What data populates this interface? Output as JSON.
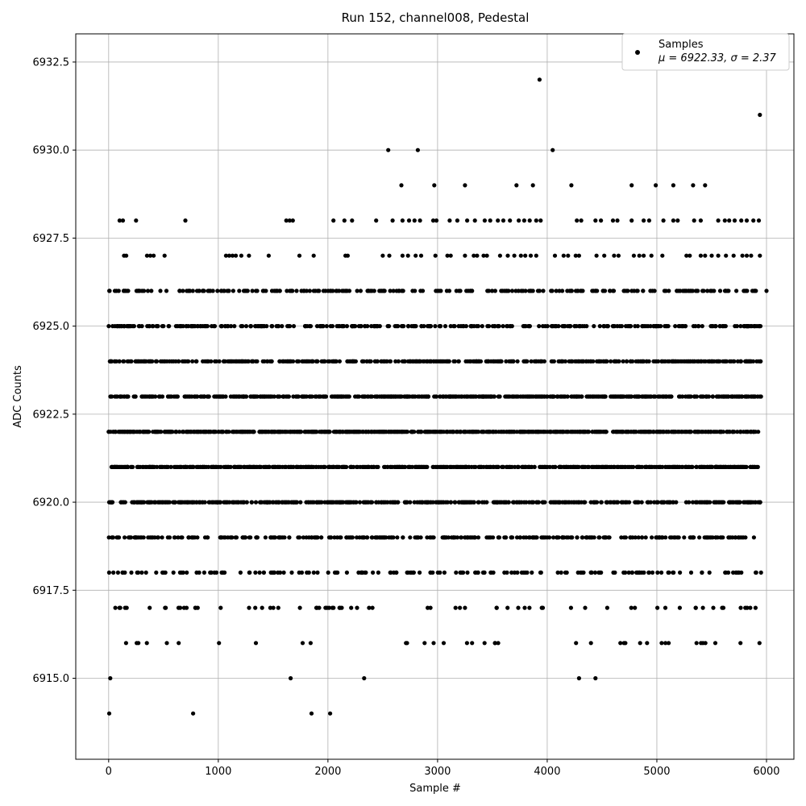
{
  "chart_data": {
    "type": "scatter",
    "title": "Run 152, channel008, Pedestal",
    "xlabel": "Sample #",
    "ylabel": "ADC Counts",
    "xlim": [
      -300,
      6250
    ],
    "ylim": [
      6912.7,
      6933.3
    ],
    "x_ticks": [
      0,
      1000,
      2000,
      3000,
      4000,
      5000,
      6000
    ],
    "x_tick_labels": [
      "0",
      "1000",
      "2000",
      "3000",
      "4000",
      "5000",
      "6000"
    ],
    "y_ticks": [
      6915.0,
      6917.5,
      6920.0,
      6922.5,
      6925.0,
      6927.5,
      6930.0,
      6932.5
    ],
    "y_tick_labels": [
      "6915.0",
      "6917.5",
      "6920.0",
      "6922.5",
      "6925.0",
      "6927.5",
      "6930.0",
      "6932.5"
    ],
    "grid": true,
    "legend": {
      "placement": "top-right",
      "title": "Samples",
      "subtitle": "μ = 6922.33, σ = 2.37"
    },
    "series": [
      {
        "name": "Samples",
        "color": "#000000",
        "marker": "circle",
        "points": [
          [
            3930,
            6932
          ],
          [
            5940,
            6931
          ],
          [
            2550,
            6930
          ],
          [
            2820,
            6930
          ],
          [
            4050,
            6930
          ],
          [
            2670,
            6929
          ],
          [
            2970,
            6929
          ],
          [
            3250,
            6929
          ],
          [
            3720,
            6929
          ],
          [
            3870,
            6929
          ],
          [
            4220,
            6929
          ],
          [
            4770,
            6929
          ],
          [
            4990,
            6929
          ],
          [
            5150,
            6929
          ],
          [
            5330,
            6929
          ],
          [
            5440,
            6929
          ],
          [
            100,
            6928
          ],
          [
            130,
            6928
          ],
          [
            250,
            6928
          ],
          [
            700,
            6928
          ],
          [
            1620,
            6928
          ],
          [
            1650,
            6928
          ],
          [
            1680,
            6928
          ],
          [
            2050,
            6928
          ],
          [
            2150,
            6928
          ],
          [
            2220,
            6928
          ],
          [
            2440,
            6928
          ],
          [
            2590,
            6928
          ],
          [
            2680,
            6928
          ],
          [
            2740,
            6928
          ],
          [
            2790,
            6928
          ],
          [
            2840,
            6928
          ],
          [
            2960,
            6928
          ],
          [
            2990,
            6928
          ],
          [
            3110,
            6928
          ],
          [
            3180,
            6928
          ],
          [
            3270,
            6928
          ],
          [
            3340,
            6928
          ],
          [
            3430,
            6928
          ],
          [
            3480,
            6928
          ],
          [
            3550,
            6928
          ],
          [
            3600,
            6928
          ],
          [
            3660,
            6928
          ],
          [
            3740,
            6928
          ],
          [
            3790,
            6928
          ],
          [
            3840,
            6928
          ],
          [
            3900,
            6928
          ],
          [
            3940,
            6928
          ],
          [
            4270,
            6928
          ],
          [
            4310,
            6928
          ],
          [
            4440,
            6928
          ],
          [
            4490,
            6928
          ],
          [
            4600,
            6928
          ],
          [
            4640,
            6928
          ],
          [
            4770,
            6928
          ],
          [
            4880,
            6928
          ],
          [
            4930,
            6928
          ],
          [
            5060,
            6928
          ],
          [
            5150,
            6928
          ],
          [
            5190,
            6928
          ],
          [
            5340,
            6928
          ],
          [
            5400,
            6928
          ],
          [
            5560,
            6928
          ],
          [
            5620,
            6928
          ],
          [
            5660,
            6928
          ],
          [
            5710,
            6928
          ],
          [
            5770,
            6928
          ],
          [
            5820,
            6928
          ],
          [
            5880,
            6928
          ],
          [
            5930,
            6928
          ],
          [
            140,
            6927
          ],
          [
            160,
            6927
          ],
          [
            350,
            6927
          ],
          [
            380,
            6927
          ],
          [
            410,
            6927
          ],
          [
            510,
            6927
          ],
          [
            1070,
            6927
          ],
          [
            1100,
            6927
          ],
          [
            1130,
            6927
          ],
          [
            1160,
            6927
          ],
          [
            1210,
            6927
          ],
          [
            1280,
            6927
          ],
          [
            1460,
            6927
          ],
          [
            1740,
            6927
          ],
          [
            1870,
            6927
          ],
          [
            2160,
            6927
          ],
          [
            2180,
            6927
          ],
          [
            2500,
            6927
          ],
          [
            2560,
            6927
          ],
          [
            2680,
            6927
          ],
          [
            2730,
            6927
          ],
          [
            2800,
            6927
          ],
          [
            2850,
            6927
          ],
          [
            2980,
            6927
          ],
          [
            3090,
            6927
          ],
          [
            3120,
            6927
          ],
          [
            3250,
            6927
          ],
          [
            3330,
            6927
          ],
          [
            3360,
            6927
          ],
          [
            3420,
            6927
          ],
          [
            3450,
            6927
          ],
          [
            3570,
            6927
          ],
          [
            3640,
            6927
          ],
          [
            3700,
            6927
          ],
          [
            3760,
            6927
          ],
          [
            3800,
            6927
          ],
          [
            3850,
            6927
          ],
          [
            3900,
            6927
          ],
          [
            4070,
            6927
          ],
          [
            4150,
            6927
          ],
          [
            4190,
            6927
          ],
          [
            4260,
            6927
          ],
          [
            4290,
            6927
          ],
          [
            4450,
            6927
          ],
          [
            4520,
            6927
          ],
          [
            4610,
            6927
          ],
          [
            4650,
            6927
          ],
          [
            4790,
            6927
          ],
          [
            4840,
            6927
          ],
          [
            4880,
            6927
          ],
          [
            4950,
            6927
          ],
          [
            5050,
            6927
          ],
          [
            5270,
            6927
          ],
          [
            5300,
            6927
          ],
          [
            5400,
            6927
          ],
          [
            5440,
            6927
          ],
          [
            5500,
            6927
          ],
          [
            5560,
            6927
          ],
          [
            5630,
            6927
          ],
          [
            5700,
            6927
          ],
          [
            5780,
            6927
          ],
          [
            5820,
            6927
          ],
          [
            5860,
            6927
          ],
          [
            5940,
            6927
          ],
          [
            5,
            6914
          ],
          [
            15,
            6915
          ],
          [
            0,
            6922
          ],
          [
            6000,
            6926
          ]
        ],
        "band_levels": [
          6916,
          6917,
          6918,
          6919,
          6920,
          6921,
          6922,
          6923,
          6924,
          6925,
          6926
        ],
        "band_x_range": [
          0,
          5950
        ],
        "band_point_counts": [
          38,
          70,
          170,
          320,
          520,
          620,
          780,
          600,
          470,
          330,
          260
        ]
      }
    ],
    "sparse_points": [
      [
        770,
        6914
      ],
      [
        1850,
        6914
      ],
      [
        2020,
        6914
      ],
      [
        1660,
        6915
      ],
      [
        2330,
        6915
      ],
      [
        4290,
        6915
      ],
      [
        4440,
        6915
      ]
    ]
  }
}
